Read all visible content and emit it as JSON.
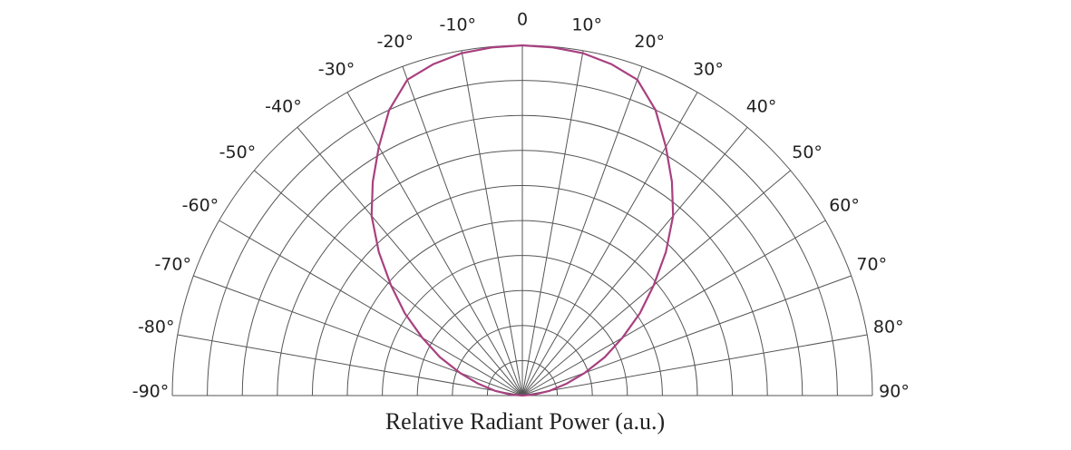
{
  "chart_data": {
    "type": "polar",
    "xlabel": "Relative Radiant Power (a.u.)",
    "xlim": [
      -90,
      90
    ],
    "xticks": [
      {
        "value": -90,
        "label": "-90°"
      },
      {
        "value": -80,
        "label": "-80°"
      },
      {
        "value": -70,
        "label": "-70°"
      },
      {
        "value": -60,
        "label": "-60°"
      },
      {
        "value": -50,
        "label": "-50°"
      },
      {
        "value": -40,
        "label": "-40°"
      },
      {
        "value": -30,
        "label": "-30°"
      },
      {
        "value": -20,
        "label": "-20°"
      },
      {
        "value": -10,
        "label": "-10°"
      },
      0,
      {
        "value": 10,
        "label": "10°"
      },
      {
        "value": 20,
        "label": "20°"
      },
      {
        "value": 30,
        "label": "30°"
      },
      {
        "value": 40,
        "label": "40°"
      },
      {
        "value": 50,
        "label": "50°"
      },
      {
        "value": 60,
        "label": "60°"
      },
      {
        "value": 70,
        "label": "70°"
      },
      {
        "value": 80,
        "label": "80°"
      },
      {
        "value": 90,
        "label": "90°"
      }
    ],
    "ylim": [
      0,
      1
    ],
    "yticks": [
      0.1,
      0.2,
      0.3,
      0.4,
      0.5,
      0.6,
      0.7,
      0.8,
      0.9,
      1
    ],
    "grid": true,
    "series": [
      {
        "color": "#a8407f",
        "x": [
          -90,
          -85,
          -80,
          -75,
          -70,
          -65,
          -60,
          -55,
          -50,
          -45,
          -40,
          -35,
          -30,
          -25,
          -20,
          -15,
          -10,
          -5,
          0,
          5,
          10,
          15,
          20,
          25,
          30,
          35,
          40,
          45,
          50,
          55,
          60,
          65,
          70,
          75,
          80,
          85,
          90
        ],
        "values": [
          0,
          0.035,
          0.08,
          0.13,
          0.19,
          0.26,
          0.33,
          0.41,
          0.49,
          0.58,
          0.67,
          0.745,
          0.82,
          0.9,
          0.96,
          0.98,
          0.993,
          0.998,
          1,
          0.998,
          0.993,
          0.98,
          0.96,
          0.9,
          0.82,
          0.745,
          0.67,
          0.58,
          0.49,
          0.41,
          0.33,
          0.26,
          0.19,
          0.13,
          0.08,
          0.035,
          0
        ]
      }
    ]
  }
}
